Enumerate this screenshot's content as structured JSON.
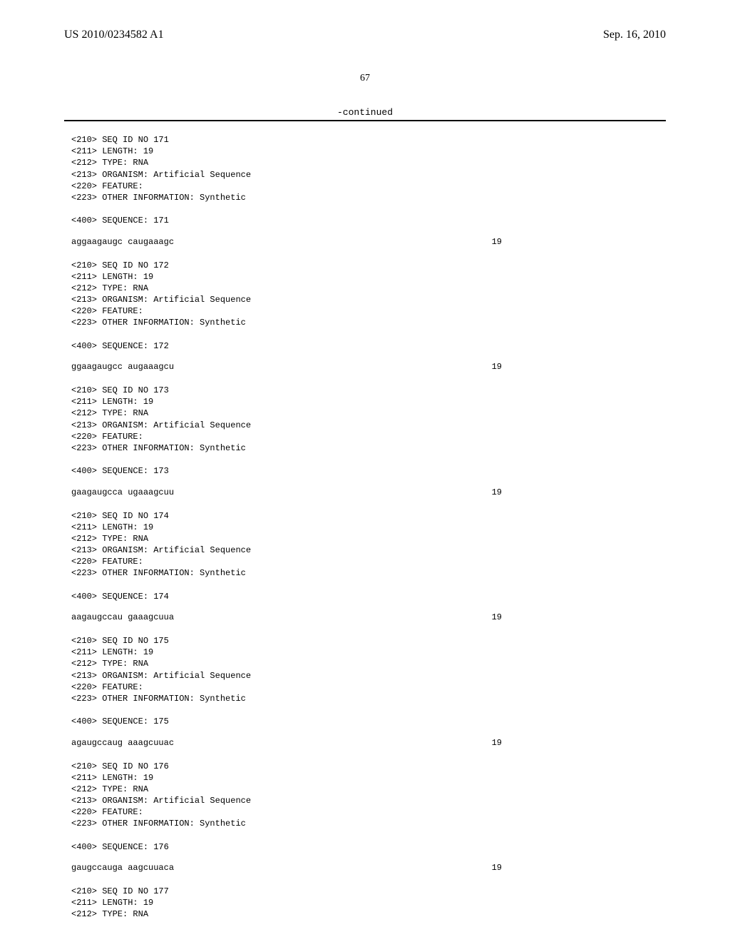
{
  "header": {
    "left": "US 2010/0234582 A1",
    "right": "Sep. 16, 2010"
  },
  "page_number": "67",
  "continued_label": "-continued",
  "blocks": [
    {
      "meta": "<210> SEQ ID NO 171\n<211> LENGTH: 19\n<212> TYPE: RNA\n<213> ORGANISM: Artificial Sequence\n<220> FEATURE:\n<223> OTHER INFORMATION: Synthetic\n\n<400> SEQUENCE: 171",
      "sequence": "aggaagaugc caugaaagc",
      "length": "19"
    },
    {
      "meta": "<210> SEQ ID NO 172\n<211> LENGTH: 19\n<212> TYPE: RNA\n<213> ORGANISM: Artificial Sequence\n<220> FEATURE:\n<223> OTHER INFORMATION: Synthetic\n\n<400> SEQUENCE: 172",
      "sequence": "ggaagaugcc augaaagcu",
      "length": "19"
    },
    {
      "meta": "<210> SEQ ID NO 173\n<211> LENGTH: 19\n<212> TYPE: RNA\n<213> ORGANISM: Artificial Sequence\n<220> FEATURE:\n<223> OTHER INFORMATION: Synthetic\n\n<400> SEQUENCE: 173",
      "sequence": "gaagaugcca ugaaagcuu",
      "length": "19"
    },
    {
      "meta": "<210> SEQ ID NO 174\n<211> LENGTH: 19\n<212> TYPE: RNA\n<213> ORGANISM: Artificial Sequence\n<220> FEATURE:\n<223> OTHER INFORMATION: Synthetic\n\n<400> SEQUENCE: 174",
      "sequence": "aagaugccau gaaagcuua",
      "length": "19"
    },
    {
      "meta": "<210> SEQ ID NO 175\n<211> LENGTH: 19\n<212> TYPE: RNA\n<213> ORGANISM: Artificial Sequence\n<220> FEATURE:\n<223> OTHER INFORMATION: Synthetic\n\n<400> SEQUENCE: 175",
      "sequence": "agaugccaug aaagcuuac",
      "length": "19"
    },
    {
      "meta": "<210> SEQ ID NO 176\n<211> LENGTH: 19\n<212> TYPE: RNA\n<213> ORGANISM: Artificial Sequence\n<220> FEATURE:\n<223> OTHER INFORMATION: Synthetic\n\n<400> SEQUENCE: 176",
      "sequence": "gaugccauga aagcuuaca",
      "length": "19"
    },
    {
      "meta": "<210> SEQ ID NO 177\n<211> LENGTH: 19\n<212> TYPE: RNA",
      "sequence": null,
      "length": null
    }
  ]
}
